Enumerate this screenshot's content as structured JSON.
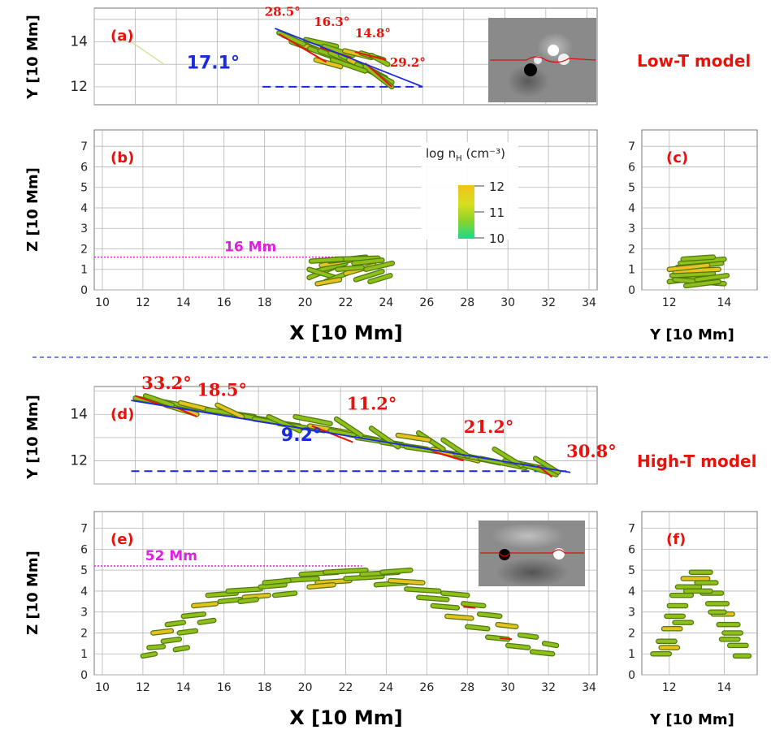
{
  "figure": {
    "divider_color": "#2a3bd6",
    "model_labels": {
      "top": "Low-T model",
      "bottom": "High-T model"
    }
  },
  "colors": {
    "fibril": "#8fbf1a",
    "fibril_dark": "#4f7a0c",
    "fibril_hot": "#e8c020",
    "red": "#e8120c",
    "blue": "#1a2bdc",
    "magenta": "#e020e0"
  },
  "chart_data": [
    {
      "id": "a",
      "type": "scatter",
      "panel_label": "(a)",
      "xlabel": "",
      "ylabel": "Y  [10 Mm]",
      "xlim": [
        10,
        34.5
      ],
      "ylim": [
        11.2,
        15.5
      ],
      "yticks": [
        12,
        14
      ],
      "fibrils": [
        [
          19.2,
          14.3,
          21.0,
          13.6
        ],
        [
          19.6,
          14.0,
          21.4,
          13.4
        ],
        [
          20.0,
          13.9,
          22.0,
          13.3
        ],
        [
          20.5,
          13.7,
          22.6,
          13.0
        ],
        [
          21.0,
          13.6,
          23.0,
          12.9
        ],
        [
          21.5,
          13.5,
          23.3,
          12.8
        ],
        [
          22.0,
          13.4,
          23.8,
          12.6
        ],
        [
          22.4,
          13.2,
          24.2,
          12.4
        ],
        [
          22.8,
          13.0,
          24.5,
          12.2
        ],
        [
          23.2,
          12.9,
          24.5,
          12.0
        ],
        [
          20.3,
          14.1,
          21.8,
          13.8
        ],
        [
          21.2,
          13.8,
          22.6,
          13.4
        ],
        [
          22.2,
          13.6,
          23.5,
          13.3
        ],
        [
          23.0,
          13.5,
          24.1,
          13.2
        ],
        [
          19.0,
          14.4,
          20.2,
          13.9
        ],
        [
          21.6,
          13.2,
          23.2,
          12.7
        ],
        [
          23.5,
          13.4,
          24.3,
          13.0
        ],
        [
          20.8,
          13.2,
          22.0,
          12.9
        ]
      ],
      "red_segments": [
        [
          19.0,
          14.35,
          21.3,
          13.1
        ],
        [
          21.0,
          13.75,
          22.5,
          13.3
        ],
        [
          22.7,
          13.55,
          24.2,
          13.2
        ],
        [
          23.2,
          13.05,
          24.5,
          12.0
        ]
      ],
      "fit_line": [
        18.8,
        14.6,
        26.0,
        12.0
      ],
      "baseline": [
        18.2,
        12.0,
        26.0,
        12.0
      ],
      "angles_red": [
        {
          "text": "28.5°",
          "x": 18.3,
          "y": 15.15
        },
        {
          "text": "16.3°",
          "x": 20.7,
          "y": 14.7
        },
        {
          "text": "14.8°",
          "x": 22.7,
          "y": 14.2
        },
        {
          "text": "29.2°",
          "x": 24.4,
          "y": 12.9
        }
      ],
      "angle_blue": {
        "text": "17.1°",
        "x": 14.5,
        "y": 12.8
      },
      "faint_line": [
        11.8,
        14.0,
        13.4,
        13.0
      ]
    },
    {
      "id": "b",
      "type": "scatter",
      "panel_label": "(b)",
      "xlabel": "X [10 Mm]",
      "ylabel": "Z  [10 Mm]",
      "xlim": [
        9.6,
        34.4
      ],
      "ylim": [
        0,
        7.8
      ],
      "xticks": [
        10,
        12,
        14,
        16,
        18,
        20,
        22,
        24,
        26,
        28,
        30,
        32,
        34
      ],
      "yticks": [
        0,
        1,
        2,
        3,
        4,
        5,
        6,
        7
      ],
      "height_label": "16 Mm",
      "height_value": 1.6,
      "fibrils": [
        [
          20.2,
          0.6,
          21.4,
          1.1
        ],
        [
          20.5,
          0.9,
          22.0,
          1.3
        ],
        [
          20.8,
          1.2,
          22.5,
          1.5
        ],
        [
          21.2,
          1.4,
          23.0,
          1.6
        ],
        [
          21.5,
          1.5,
          23.6,
          1.55
        ],
        [
          20.2,
          1.0,
          21.5,
          0.6
        ],
        [
          21.0,
          0.4,
          22.3,
          0.9
        ],
        [
          22.0,
          0.8,
          23.4,
          1.2
        ],
        [
          22.5,
          0.5,
          23.8,
          0.9
        ],
        [
          23.0,
          1.0,
          24.3,
          1.3
        ],
        [
          20.3,
          1.4,
          21.8,
          1.5
        ],
        [
          22.4,
          1.3,
          23.8,
          1.45
        ],
        [
          20.6,
          0.3,
          21.7,
          0.5
        ],
        [
          23.2,
          0.4,
          24.2,
          0.7
        ],
        [
          21.6,
          1.0,
          22.8,
          1.1
        ]
      ],
      "colorbar": {
        "title": "log n",
        "subscript": "H",
        "unit": " (cm⁻³)",
        "ticks": [
          "12",
          "11",
          "10"
        ]
      }
    },
    {
      "id": "c",
      "type": "scatter",
      "panel_label": "(c)",
      "xlabel": "Y [10 Mm]",
      "ylabel": "",
      "xlim": [
        11.0,
        15.2
      ],
      "ylim": [
        0,
        7.8
      ],
      "xticks": [
        12,
        14
      ],
      "yticks": [
        0,
        1,
        2,
        3,
        4,
        5,
        6,
        7
      ],
      "fibrils": [
        [
          12.0,
          0.4,
          13.2,
          0.6
        ],
        [
          12.1,
          0.7,
          13.6,
          0.8
        ],
        [
          12.2,
          0.9,
          13.8,
          1.0
        ],
        [
          12.3,
          1.1,
          13.9,
          1.3
        ],
        [
          12.4,
          1.3,
          14.0,
          1.5
        ],
        [
          12.2,
          0.5,
          14.0,
          0.3
        ],
        [
          12.5,
          1.5,
          13.6,
          1.6
        ],
        [
          12.0,
          1.0,
          13.4,
          1.2
        ],
        [
          13.0,
          0.5,
          14.1,
          0.7
        ],
        [
          12.6,
          0.2,
          13.8,
          0.4
        ]
      ]
    },
    {
      "id": "d",
      "type": "scatter",
      "panel_label": "(d)",
      "xlabel": "",
      "ylabel": "Y  [10 Mm]",
      "xlim": [
        10,
        34.5
      ],
      "ylim": [
        11.0,
        15.2
      ],
      "yticks": [
        12,
        14
      ],
      "fibrils": [
        [
          12.0,
          14.7,
          14.0,
          14.4
        ],
        [
          13.0,
          14.6,
          15.5,
          14.2
        ],
        [
          14.2,
          14.5,
          16.5,
          14.0
        ],
        [
          15.5,
          14.2,
          17.8,
          13.9
        ],
        [
          16.8,
          14.0,
          18.8,
          13.7
        ],
        [
          17.8,
          13.8,
          20.0,
          13.5
        ],
        [
          19.0,
          13.6,
          21.2,
          13.3
        ],
        [
          20.5,
          13.5,
          22.5,
          13.2
        ],
        [
          21.5,
          13.3,
          23.8,
          12.9
        ],
        [
          22.8,
          13.0,
          25.0,
          12.7
        ],
        [
          24.0,
          12.8,
          26.2,
          12.5
        ],
        [
          25.2,
          12.6,
          27.5,
          12.3
        ],
        [
          26.5,
          12.5,
          28.7,
          12.0
        ],
        [
          27.6,
          12.3,
          29.8,
          11.9
        ],
        [
          28.8,
          12.1,
          31.0,
          11.7
        ],
        [
          30.0,
          12.0,
          32.3,
          11.6
        ],
        [
          31.0,
          11.8,
          32.5,
          11.4
        ],
        [
          13.5,
          14.4,
          15.0,
          14.0
        ],
        [
          18.5,
          13.9,
          20.0,
          13.3
        ],
        [
          23.5,
          13.4,
          24.8,
          12.6
        ],
        [
          27.0,
          12.9,
          28.2,
          12.2
        ],
        [
          29.5,
          12.5,
          30.8,
          11.8
        ],
        [
          16.0,
          14.4,
          17.2,
          13.9
        ],
        [
          21.8,
          13.8,
          23.0,
          13.1
        ],
        [
          25.8,
          13.2,
          27.0,
          12.5
        ],
        [
          12.5,
          14.8,
          13.8,
          14.4
        ],
        [
          19.8,
          13.9,
          21.5,
          13.6
        ],
        [
          24.8,
          13.1,
          26.3,
          12.9
        ],
        [
          31.5,
          12.1,
          32.6,
          11.5
        ]
      ],
      "red_segments": [
        [
          12.0,
          14.8,
          13.6,
          14.3
        ],
        [
          14.0,
          14.3,
          15.0,
          13.9
        ],
        [
          20.6,
          13.5,
          22.6,
          12.8
        ],
        [
          26.5,
          12.4,
          28.0,
          12.0
        ],
        [
          31.6,
          11.8,
          32.3,
          11.3
        ]
      ],
      "fit_line": [
        11.8,
        14.6,
        33.2,
        11.5
      ],
      "baseline": [
        11.8,
        11.55,
        33.0,
        11.55
      ],
      "angles_red": [
        {
          "text": "33.2°",
          "x": 12.3,
          "y": 15.1
        },
        {
          "text": "18.5°",
          "x": 15.0,
          "y": 14.8
        },
        {
          "text": "11.2°",
          "x": 22.3,
          "y": 14.2
        },
        {
          "text": "21.2°",
          "x": 28.0,
          "y": 13.2
        },
        {
          "text": "30.8°",
          "x": 33.0,
          "y": 12.15
        }
      ],
      "angle_blue": {
        "text": "9.2°",
        "x": 19.1,
        "y": 12.85
      }
    },
    {
      "id": "e",
      "type": "scatter",
      "panel_label": "(e)",
      "xlabel": "X [10 Mm]",
      "ylabel": "Z  [10 Mm]",
      "xlim": [
        9.6,
        34.4
      ],
      "ylim": [
        0,
        7.8
      ],
      "xticks": [
        10,
        12,
        14,
        16,
        18,
        20,
        22,
        24,
        26,
        28,
        30,
        32,
        34
      ],
      "yticks": [
        0,
        1,
        2,
        3,
        4,
        5,
        6,
        7
      ],
      "height_label": "52 Mm",
      "height_value": 5.2,
      "fibrils": [
        [
          12.0,
          0.9,
          12.6,
          1.0
        ],
        [
          12.3,
          1.3,
          13.0,
          1.35
        ],
        [
          12.5,
          2.0,
          13.4,
          2.1
        ],
        [
          13.0,
          1.6,
          13.8,
          1.7
        ],
        [
          13.2,
          2.4,
          14.0,
          2.5
        ],
        [
          13.8,
          2.0,
          14.6,
          2.1
        ],
        [
          14.0,
          2.8,
          15.0,
          2.9
        ],
        [
          14.5,
          3.3,
          15.6,
          3.4
        ],
        [
          14.8,
          2.5,
          15.5,
          2.6
        ],
        [
          15.2,
          3.8,
          16.6,
          3.9
        ],
        [
          15.8,
          3.5,
          16.8,
          3.6
        ],
        [
          16.2,
          4.0,
          17.8,
          4.1
        ],
        [
          17.0,
          3.7,
          18.2,
          3.8
        ],
        [
          17.8,
          4.2,
          19.0,
          4.3
        ],
        [
          18.5,
          3.8,
          19.5,
          3.9
        ],
        [
          19.0,
          4.5,
          20.6,
          4.6
        ],
        [
          19.8,
          4.8,
          21.6,
          4.9
        ],
        [
          20.6,
          4.4,
          22.2,
          4.5
        ],
        [
          21.0,
          4.9,
          23.0,
          5.0
        ],
        [
          22.0,
          4.6,
          23.8,
          4.7
        ],
        [
          22.8,
          4.8,
          24.6,
          4.9
        ],
        [
          23.5,
          4.3,
          25.0,
          4.4
        ],
        [
          24.2,
          4.5,
          25.8,
          4.4
        ],
        [
          25.0,
          4.1,
          26.6,
          4.0
        ],
        [
          25.6,
          3.7,
          27.0,
          3.6
        ],
        [
          26.3,
          3.3,
          27.5,
          3.2
        ],
        [
          26.8,
          3.9,
          28.0,
          3.8
        ],
        [
          27.0,
          2.8,
          28.2,
          2.7
        ],
        [
          27.8,
          3.4,
          28.8,
          3.3
        ],
        [
          28.0,
          2.3,
          29.0,
          2.2
        ],
        [
          28.6,
          2.9,
          29.6,
          2.8
        ],
        [
          29.0,
          1.8,
          30.0,
          1.7
        ],
        [
          29.5,
          2.4,
          30.4,
          2.3
        ],
        [
          30.0,
          1.4,
          31.0,
          1.3
        ],
        [
          30.6,
          1.9,
          31.4,
          1.8
        ],
        [
          31.2,
          1.1,
          32.2,
          1.0
        ],
        [
          18.0,
          4.4,
          19.2,
          4.5
        ],
        [
          20.2,
          4.2,
          21.4,
          4.3
        ],
        [
          23.8,
          4.9,
          25.2,
          5.0
        ],
        [
          16.8,
          3.5,
          17.6,
          3.6
        ],
        [
          13.6,
          1.2,
          14.2,
          1.3
        ],
        [
          31.8,
          1.5,
          32.4,
          1.4
        ]
      ],
      "red_segments": [
        [
          27.8,
          3.25,
          28.4,
          3.2
        ],
        [
          29.6,
          1.75,
          30.2,
          1.7
        ]
      ]
    },
    {
      "id": "f",
      "type": "scatter",
      "panel_label": "(f)",
      "xlabel": "Y [10 Mm]",
      "ylabel": "",
      "xlim": [
        11.0,
        15.2
      ],
      "ylim": [
        0,
        7.8
      ],
      "xticks": [
        12,
        14
      ],
      "yticks": [
        0,
        1,
        2,
        3,
        4,
        5,
        6,
        7
      ],
      "fibrils": [
        [
          11.4,
          1.0,
          12.0,
          1.0
        ],
        [
          11.6,
          1.6,
          12.2,
          1.6
        ],
        [
          11.8,
          2.2,
          12.4,
          2.2
        ],
        [
          11.9,
          2.8,
          12.5,
          2.8
        ],
        [
          12.0,
          3.3,
          12.6,
          3.3
        ],
        [
          12.1,
          3.8,
          12.8,
          3.8
        ],
        [
          12.3,
          4.2,
          13.1,
          4.2
        ],
        [
          12.5,
          4.6,
          13.4,
          4.6
        ],
        [
          12.8,
          4.9,
          13.5,
          4.9
        ],
        [
          13.0,
          4.4,
          13.7,
          4.4
        ],
        [
          13.2,
          3.9,
          13.9,
          3.9
        ],
        [
          13.4,
          3.4,
          14.1,
          3.4
        ],
        [
          13.6,
          2.9,
          14.3,
          2.9
        ],
        [
          13.8,
          2.4,
          14.5,
          2.4
        ],
        [
          14.0,
          2.0,
          14.6,
          2.0
        ],
        [
          14.2,
          1.4,
          14.8,
          1.4
        ],
        [
          14.4,
          0.9,
          14.9,
          0.9
        ],
        [
          11.7,
          1.3,
          12.3,
          1.3
        ],
        [
          12.2,
          2.5,
          12.8,
          2.5
        ],
        [
          13.5,
          3.0,
          14.0,
          3.0
        ],
        [
          12.6,
          4.0,
          13.5,
          4.0
        ],
        [
          13.9,
          1.7,
          14.5,
          1.7
        ]
      ]
    }
  ]
}
